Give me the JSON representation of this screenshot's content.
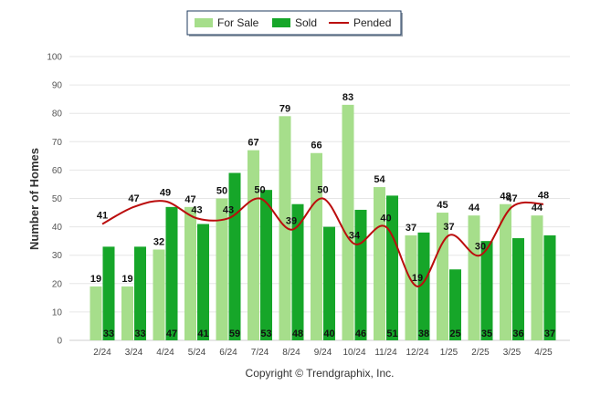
{
  "chart_data": {
    "type": "bar",
    "title": "",
    "ylabel": "Number of Homes",
    "xlabel": "",
    "ylim": [
      0,
      100
    ],
    "yticks": [
      0,
      10,
      20,
      30,
      40,
      50,
      60,
      70,
      80,
      90,
      100
    ],
    "grid": true,
    "legend": "top-center",
    "categories": [
      "2/24",
      "3/24",
      "4/24",
      "5/24",
      "6/24",
      "7/24",
      "8/24",
      "9/24",
      "10/24",
      "11/24",
      "12/24",
      "1/25",
      "2/25",
      "3/25",
      "4/25"
    ],
    "series": [
      {
        "name": "For Sale",
        "type": "bar",
        "color": "#a6de8b",
        "values": [
          19,
          19,
          32,
          47,
          50,
          67,
          79,
          66,
          83,
          54,
          37,
          45,
          44,
          48,
          44
        ]
      },
      {
        "name": "Sold",
        "type": "bar",
        "color": "#16a629",
        "values": [
          33,
          33,
          47,
          41,
          59,
          53,
          48,
          40,
          46,
          51,
          38,
          25,
          35,
          36,
          37
        ]
      },
      {
        "name": "Pended",
        "type": "line",
        "color": "#bb0d0d",
        "values": [
          41,
          47,
          49,
          43,
          43,
          50,
          39,
          50,
          34,
          40,
          19,
          37,
          30,
          47,
          48
        ]
      }
    ]
  },
  "footer": {
    "copyright": "Copyright © Trendgraphix, Inc."
  }
}
